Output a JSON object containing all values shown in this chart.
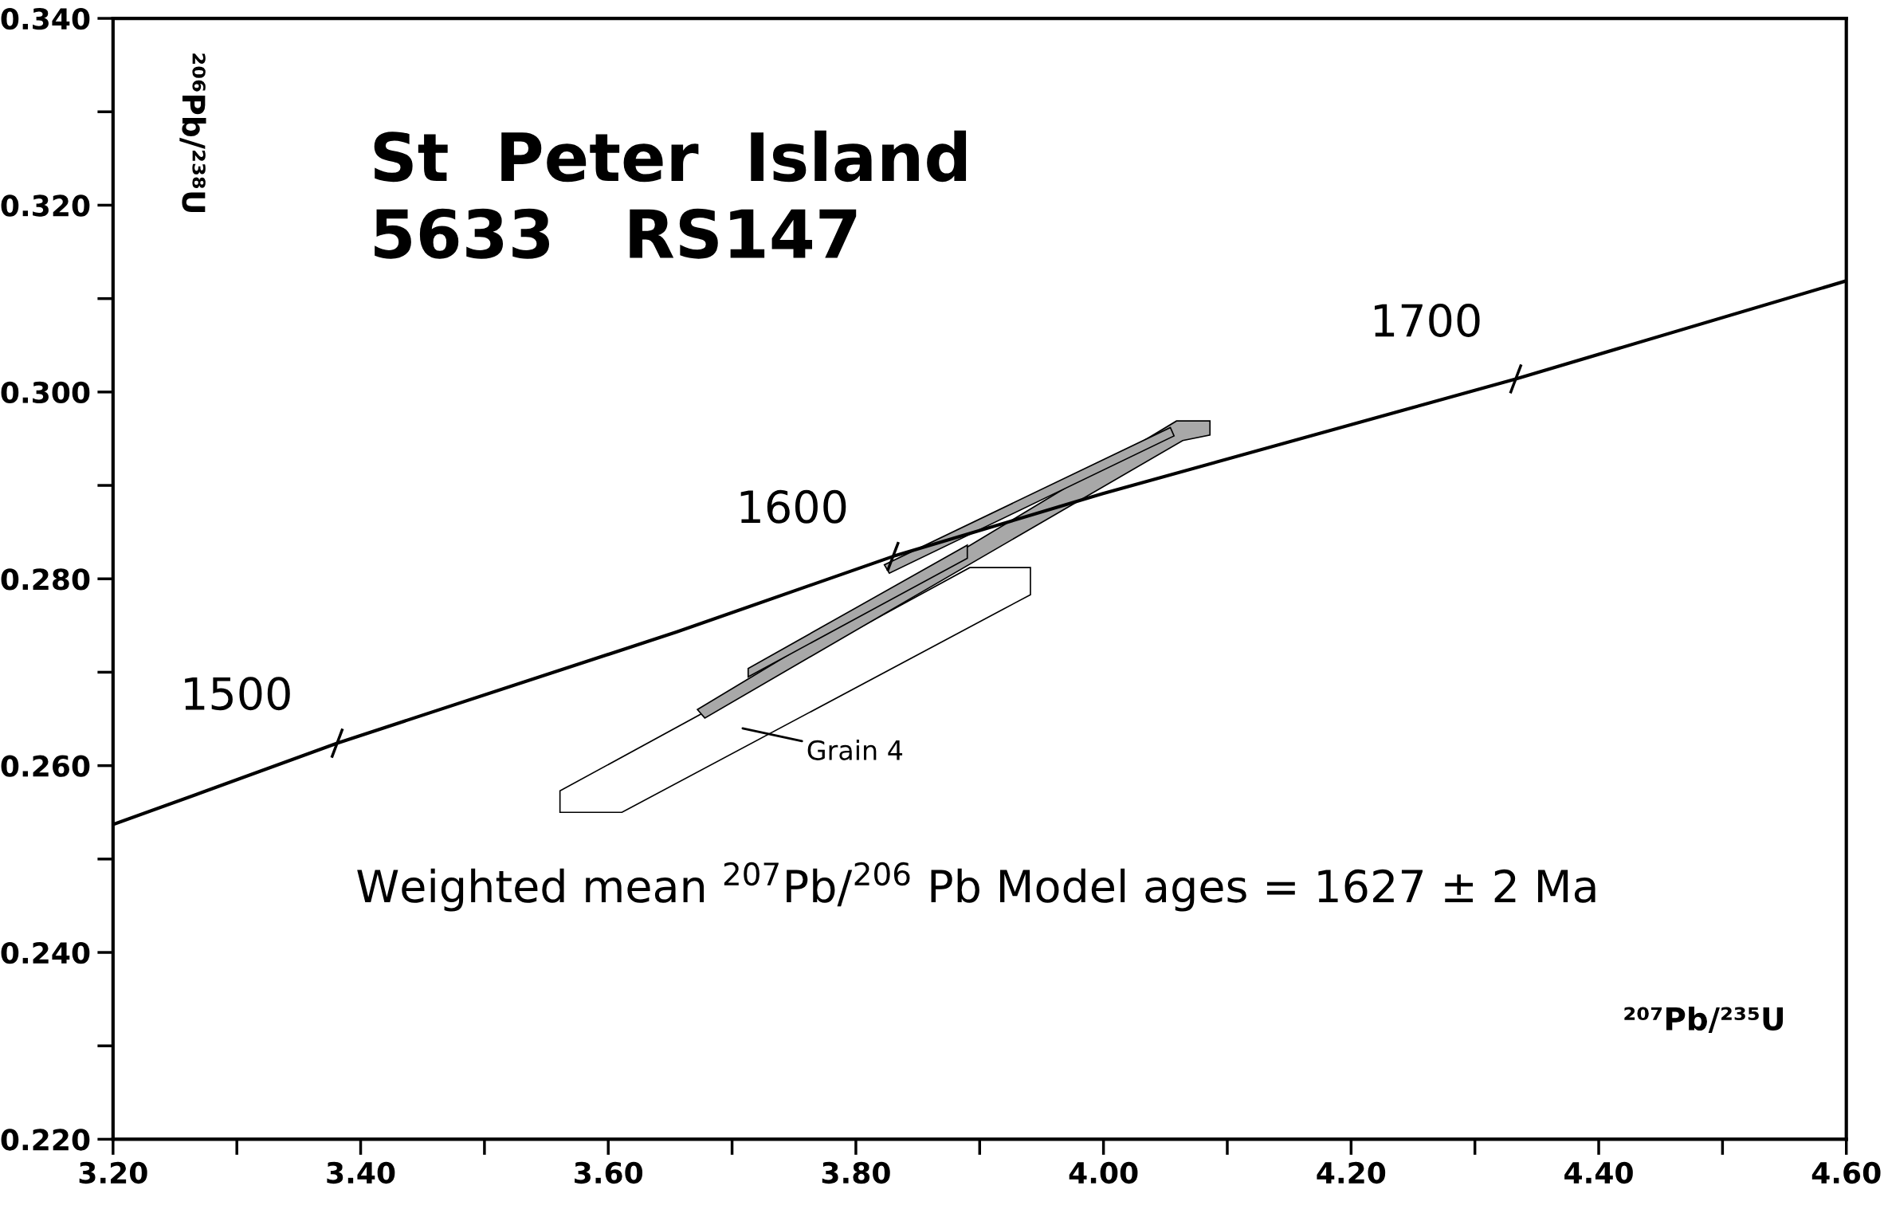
{
  "chart_data": {
    "type": "line",
    "title": "St  Peter  Island\n5633   RS147",
    "xlabel": "²⁰⁷Pb/²³⁵U",
    "ylabel": "²⁰⁶Pb/²³⁸U",
    "xlim": [
      3.2,
      4.6
    ],
    "ylim": [
      0.22,
      0.34
    ],
    "xticks": [
      {
        "value": 3.2,
        "label": "3.20"
      },
      {
        "value": 3.4,
        "label": "3.40"
      },
      {
        "value": 3.6,
        "label": "3.60"
      },
      {
        "value": 3.8,
        "label": "3.80"
      },
      {
        "value": 4.0,
        "label": "4.00"
      },
      {
        "value": 4.2,
        "label": "4.20"
      },
      {
        "value": 4.4,
        "label": "4.40"
      },
      {
        "value": 4.6,
        "label": "4.60"
      }
    ],
    "yticks": [
      {
        "value": 0.22,
        "label": "0.220"
      },
      {
        "value": 0.24,
        "label": "0.240"
      },
      {
        "value": 0.26,
        "label": "0.260"
      },
      {
        "value": 0.28,
        "label": "0.280"
      },
      {
        "value": 0.3,
        "label": "0.300"
      },
      {
        "value": 0.32,
        "label": "0.320"
      },
      {
        "value": 0.34,
        "label": "0.340"
      }
    ],
    "series": [
      {
        "color": "#000000",
        "x": [
          3.2,
          3.267,
          3.381,
          3.655,
          3.83,
          3.999,
          4.333,
          4.6
        ],
        "values": [
          0.2537,
          0.2569,
          0.2624,
          0.2743,
          0.2824,
          0.2891,
          0.3014,
          0.3119
        ]
      },
      {
        "type": "area",
        "color": "#ffffff",
        "x": [
          3.561,
          3.561,
          3.611,
          3.941,
          3.941,
          3.892,
          3.561
        ],
        "values": [
          0.2573,
          0.255,
          0.255,
          0.2783,
          0.2812,
          0.2812,
          0.2573
        ]
      },
      {
        "type": "area",
        "color": "#a8a8a8",
        "x": [
          3.672,
          3.678,
          4.064,
          4.086,
          4.086,
          4.059,
          3.672
        ],
        "values": [
          0.266,
          0.2651,
          0.2948,
          0.2954,
          0.2969,
          0.2969,
          0.266
        ]
      },
      {
        "type": "area",
        "color": "#a8a8a8",
        "x": [
          3.713,
          3.713,
          3.89,
          3.89,
          3.713
        ],
        "values": [
          0.2704,
          0.2695,
          0.2822,
          0.2836,
          0.2704
        ]
      },
      {
        "type": "area",
        "color": "#a8a8a8",
        "x": [
          3.823,
          3.827,
          4.057,
          4.054,
          3.823
        ],
        "values": [
          0.2815,
          0.2806,
          0.2953,
          0.2962,
          0.2815
        ]
      }
    ],
    "annotations": [
      {
        "text": "1500",
        "x": 3.381,
        "y": 0.2624
      },
      {
        "text": "1600",
        "x": 3.83,
        "y": 0.2824
      },
      {
        "text": "1700",
        "x": 4.333,
        "y": 0.3014
      },
      "Grain 4",
      "Weighted mean $^{207}$Pb/$^{206}$ Pb Model ages = 1627 ± 2 Ma"
    ],
    "grid": false,
    "marker": "none",
    "line_style": "solid"
  }
}
